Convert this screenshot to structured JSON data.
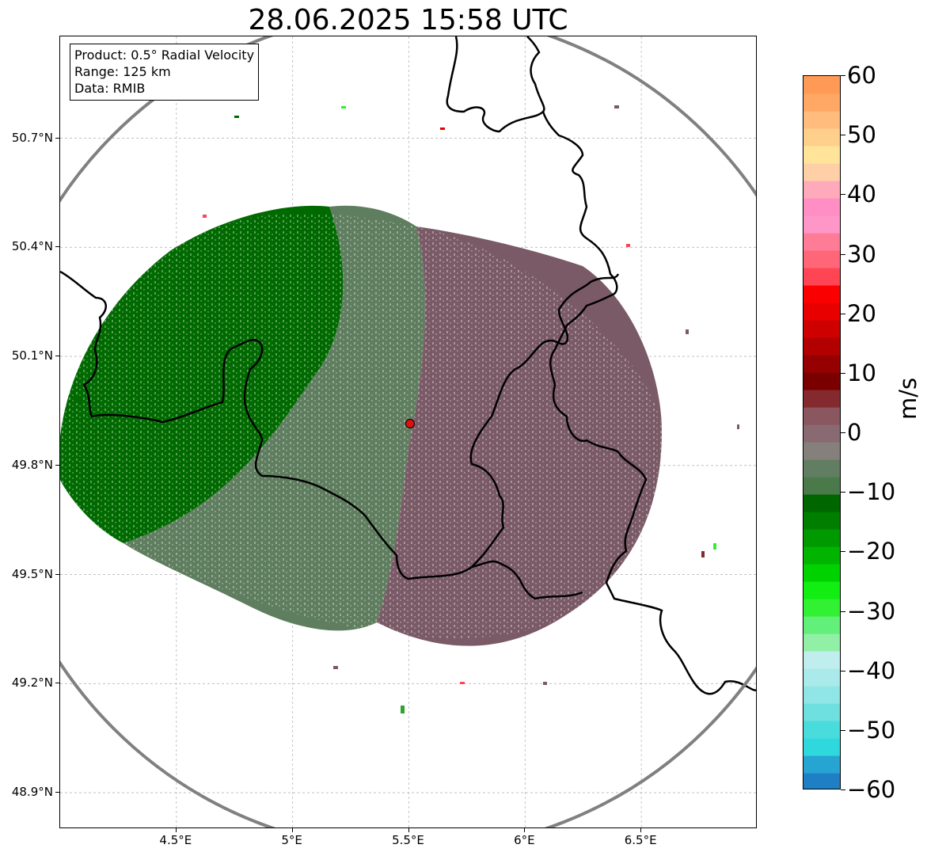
{
  "title": "28.06.2025 15:58 UTC",
  "info": {
    "product": "Product: 0.5° Radial Velocity",
    "range": "Range: 125 km",
    "data": "Data: RMIB"
  },
  "map": {
    "lon_range": [
      4.0,
      7.0
    ],
    "lat_range": [
      48.8,
      50.98
    ],
    "radar_site": {
      "lon": 5.505,
      "lat": 49.915
    },
    "range_ring": "125 km",
    "y_ticks": [
      "50.7°N",
      "50.4°N",
      "50.1°N",
      "49.8°N",
      "49.5°N",
      "49.2°N",
      "48.9°N"
    ],
    "y_tick_values": [
      50.7,
      50.4,
      50.1,
      49.8,
      49.5,
      49.2,
      48.9
    ],
    "x_ticks": [
      "4.5°E",
      "5°E",
      "5.5°E",
      "6°E",
      "6.5°E"
    ],
    "x_tick_values": [
      4.5,
      5.0,
      5.5,
      6.0,
      6.5
    ],
    "gridlines": true,
    "colors": {
      "inbound_strong": "#006a00",
      "inbound_weak": "#5f7d5f",
      "outbound_weak": "#7a5a66",
      "border": "#000000",
      "ring": "#808080",
      "site": "#e01010"
    }
  },
  "colorbar": {
    "unit": "m/s",
    "range": [
      -60,
      60
    ],
    "ticks": [
      "60",
      "50",
      "40",
      "30",
      "20",
      "10",
      "0",
      "−10",
      "−20",
      "−30",
      "−40",
      "−50",
      "−60"
    ],
    "tick_values": [
      60,
      50,
      40,
      30,
      20,
      10,
      0,
      -10,
      -20,
      -30,
      -40,
      -50,
      -60
    ],
    "colors": [
      "#1f7fc4",
      "#26a4d2",
      "#2ed8dc",
      "#48dcdc",
      "#6ee0e0",
      "#90e6e6",
      "#aaeaea",
      "#c0eeee",
      "#92f0a6",
      "#62f07a",
      "#32f032",
      "#12ee12",
      "#00d200",
      "#00b400",
      "#009a00",
      "#007e00",
      "#006600",
      "#4a7a4a",
      "#627e62",
      "#86807c",
      "#8a6a72",
      "#8a5660",
      "#842a2e",
      "#7a0000",
      "#960000",
      "#b20000",
      "#ce0000",
      "#e80000",
      "#fa0000",
      "#ff4454",
      "#ff6678",
      "#ff7c96",
      "#ff96c8",
      "#ff8ec4",
      "#ffaaba",
      "#ffcfa8",
      "#ffe49a",
      "#ffd08c",
      "#ffbc7c",
      "#ffa866",
      "#ff9a56"
    ]
  }
}
